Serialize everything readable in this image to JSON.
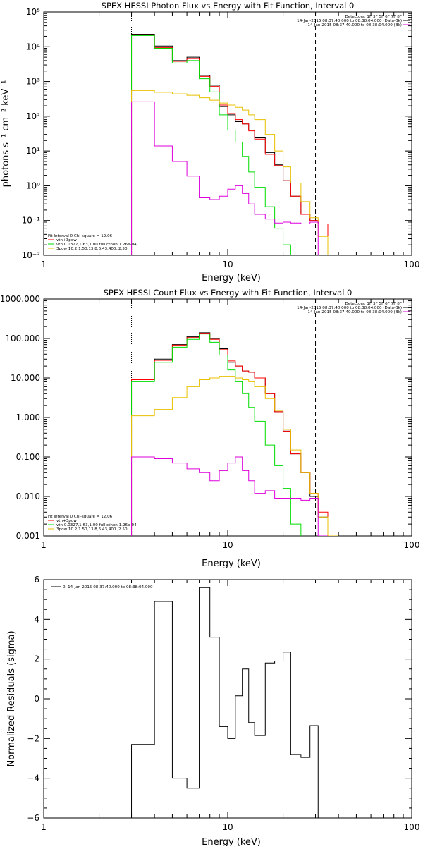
{
  "chart_data": [
    {
      "id": "photon",
      "type": "line",
      "title": "SPEX HESSI Photon Flux vs Energy with Fit Function, Interval 0",
      "xlabel": "Energy (keV)",
      "ylabel": "photons s⁻¹ cm⁻² keV⁻¹",
      "xscale": "log",
      "yscale": "log",
      "xlim": [
        1,
        100
      ],
      "ylim": [
        0.01,
        100000
      ],
      "x_ticks": [
        1,
        10,
        100
      ],
      "x_tick_labels": [
        "1",
        "10",
        "100"
      ],
      "y_ticks": [
        0.01,
        0.1,
        1,
        10,
        100,
        1000,
        10000,
        100000
      ],
      "y_tick_labels": [
        "10⁻²",
        "10⁻¹",
        "10⁰",
        "10¹",
        "10²",
        "10³",
        "10⁴",
        "10⁵"
      ],
      "vlines": [
        {
          "x": 3.0,
          "style": "dotted"
        },
        {
          "x": 30.0,
          "style": "dashed"
        }
      ],
      "bin_edges": [
        3.0,
        4.0,
        5.0,
        6.0,
        7.0,
        8.0,
        9.0,
        10.0,
        11.0,
        12.0,
        13.0,
        14.0,
        16.0,
        18.0,
        20.0,
        22.0,
        25.0,
        28.0,
        31.0,
        35.0,
        40.0
      ],
      "series": [
        {
          "color": "#000000",
          "values": [
            23000,
            10500,
            4000,
            5000,
            1500,
            780,
            190,
            110,
            70,
            60,
            40,
            25,
            9,
            4,
            1.4,
            0.5,
            0.15,
            0.1,
            0.08,
            null
          ]
        },
        {
          "color": "#ff0000",
          "values": [
            22000,
            9500,
            3800,
            4600,
            1400,
            720,
            210,
            120,
            80,
            60,
            38,
            22,
            8,
            3.8,
            1.4,
            0.5,
            0.15,
            0.1,
            0.08,
            null
          ]
        },
        {
          "color": "#00dd00",
          "values": [
            21000,
            9000,
            3400,
            4000,
            1200,
            500,
            110,
            40,
            18,
            7,
            2.5,
            0.9,
            0.25,
            0.06,
            0.02,
            0.005,
            null,
            null,
            null,
            null
          ]
        },
        {
          "color": "#e8c000",
          "values": [
            550,
            490,
            440,
            400,
            340,
            290,
            240,
            210,
            180,
            150,
            110,
            80,
            30,
            10,
            3.5,
            1.2,
            0.35,
            0.12,
            0.035,
            0.01
          ]
        },
        {
          "color": "#dd00dd",
          "values": [
            260,
            14,
            5,
            1.9,
            0.45,
            0.4,
            0.5,
            0.8,
            1.0,
            0.6,
            0.3,
            0.15,
            0.11,
            0.085,
            0.09,
            0.085,
            0.08,
            0.09,
            0.005,
            null
          ]
        }
      ],
      "legend_top": {
        "detectors": "Detectors: 1F 3F 5F 6F 7F 8F",
        "entries": [
          {
            "text": "14-Jan-2015 08:37:40.000 to 08:38:04.000 (Data-Bk)",
            "color": "#000000"
          },
          {
            "text": "14-Jan-2015 08:37:40.000 to 08:38:04.000 (Bk)",
            "color": "#dd00dd"
          }
        ]
      },
      "legend_bottom": {
        "header": "Fit Interval 0   Chi-square = 12.06",
        "entries": [
          {
            "text": "vth+3pow",
            "color": "#ff0000"
          },
          {
            "text": "vth 0.0327,1.63,1.00  full cthon 1.26e-04",
            "color": "#00dd00"
          },
          {
            "text": "3pow 10.2,1.50,13.8,6.43,400.,2.50",
            "color": "#e8c000"
          }
        ]
      }
    },
    {
      "id": "count",
      "type": "line",
      "title": "SPEX HESSI Count Flux vs Energy with Fit Function, Interval 0",
      "xlabel": "Energy (keV)",
      "ylabel": "",
      "xscale": "log",
      "yscale": "log",
      "xlim": [
        1,
        100
      ],
      "ylim": [
        0.001,
        1000
      ],
      "x_ticks": [
        1,
        10,
        100
      ],
      "x_tick_labels": [
        "1",
        "10",
        "100"
      ],
      "y_ticks": [
        0.001,
        0.01,
        0.1,
        1,
        10,
        100,
        1000
      ],
      "y_tick_labels": [
        "0.001",
        "0.010",
        "0.100",
        "1.000",
        "10.000",
        "100.000",
        "1000.000"
      ],
      "vlines": [
        {
          "x": 3.0,
          "style": "dotted"
        },
        {
          "x": 30.0,
          "style": "dashed"
        }
      ],
      "bin_edges": [
        3.0,
        4.0,
        5.0,
        6.0,
        7.0,
        8.0,
        9.0,
        10.0,
        11.0,
        12.0,
        13.0,
        14.0,
        16.0,
        18.0,
        20.0,
        22.0,
        25.0,
        28.0,
        31.0,
        35.0,
        40.0
      ],
      "series": [
        {
          "color": "#000000",
          "values": [
            9,
            30,
            70,
            110,
            140,
            100,
            55,
            25,
            20,
            15,
            14,
            10,
            4,
            1.4,
            0.45,
            0.12,
            0.04,
            0.01,
            0.003,
            null
          ]
        },
        {
          "color": "#ff0000",
          "values": [
            9,
            28,
            68,
            105,
            135,
            95,
            52,
            27,
            20,
            15,
            14,
            10,
            4,
            1.4,
            0.45,
            0.12,
            0.04,
            0.012,
            0.004,
            null
          ]
        },
        {
          "color": "#00dd00",
          "values": [
            8,
            25,
            60,
            95,
            130,
            80,
            38,
            16,
            8,
            4,
            1.8,
            0.8,
            0.2,
            0.06,
            0.016,
            0.002,
            null,
            null,
            null,
            null
          ]
        },
        {
          "color": "#e8c000",
          "values": [
            1.1,
            1.6,
            3.2,
            6,
            9,
            10,
            11,
            11,
            10,
            9,
            8,
            6,
            3,
            1.5,
            0.5,
            0.15,
            0.04,
            0.012,
            0.003,
            0.0009
          ]
        },
        {
          "color": "#dd00dd",
          "values": [
            0.1,
            0.09,
            0.07,
            0.05,
            0.04,
            0.025,
            0.045,
            0.07,
            0.1,
            0.045,
            0.025,
            0.012,
            0.014,
            0.009,
            0.009,
            0.009,
            0.008,
            0.009,
            0.001,
            null
          ]
        }
      ],
      "legend_top": {
        "detectors": "Detectors: 1F 3F 5F 6F 7F 8F",
        "entries": [
          {
            "text": "14-Jan-2015 08:37:40.000 to 08:38:04.000 (Data-Bk)",
            "color": "#000000"
          },
          {
            "text": "14-Jan-2015 08:37:40.000 to 08:38:04.000 (Bk)",
            "color": "#dd00dd"
          }
        ]
      },
      "legend_bottom": {
        "header": "Fit Interval 0   Chi-square = 12.06",
        "entries": [
          {
            "text": "vth+3pow",
            "color": "#ff0000"
          },
          {
            "text": "vth 0.0327,1.63,1.00  full cthon 1.26e-04",
            "color": "#00dd00"
          },
          {
            "text": "3pow 10.2,1.50,13.8,6.43,400.,2.50",
            "color": "#e8c000"
          }
        ]
      }
    },
    {
      "id": "resid",
      "type": "line",
      "title": "",
      "xlabel": "Energy (keV)",
      "ylabel": "Normalized Residuals (sigma)",
      "xscale": "log",
      "yscale": "linear",
      "xlim": [
        1,
        100
      ],
      "ylim": [
        -6,
        6
      ],
      "x_ticks": [
        1,
        10,
        100
      ],
      "x_tick_labels": [
        "1",
        "10",
        "100"
      ],
      "y_ticks": [
        -6,
        -4,
        -2,
        0,
        2,
        4,
        6
      ],
      "y_tick_labels": [
        "−6",
        "−4",
        "−2",
        "0",
        "2",
        "4",
        "6"
      ],
      "bin_edges": [
        3.0,
        4.0,
        5.0,
        6.0,
        7.0,
        8.0,
        9.0,
        10.0,
        11.0,
        12.0,
        13.0,
        14.0,
        16.0,
        18.0,
        20.0,
        22.0,
        25.0,
        28.0,
        31.0
      ],
      "series": [
        {
          "color": "#000000",
          "values": [
            -2.3,
            4.9,
            -4.0,
            -4.5,
            5.6,
            3.1,
            -1.4,
            -2.0,
            0.15,
            1.5,
            -1.2,
            -1.85,
            1.8,
            1.9,
            2.35,
            -2.8,
            -2.95,
            -1.35
          ]
        }
      ],
      "legend_top": {
        "detectors": "",
        "entries": [
          {
            "text": "0. 14-Jan-2015 08:37:40.000 to 08:38:04.000",
            "color": "#000000"
          }
        ]
      }
    }
  ]
}
